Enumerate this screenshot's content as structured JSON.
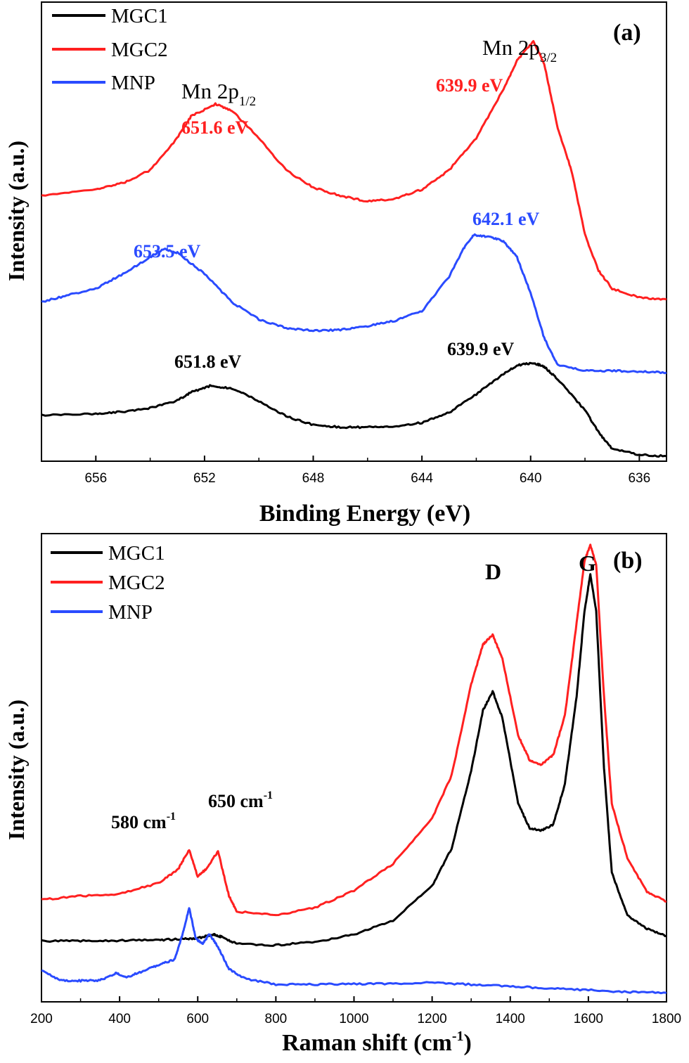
{
  "chart_data": [
    {
      "type": "line",
      "panel_label": "(a)",
      "xlabel": "Binding Energy (eV)",
      "ylabel": "Intensity (a.u.)",
      "xlim": [
        658,
        635
      ],
      "x_reversed": true,
      "ylim": [
        0,
        100
      ],
      "xticks": [
        "656",
        "652",
        "648",
        "644",
        "640",
        "636"
      ],
      "xtick_values": [
        656,
        652,
        648,
        644,
        640,
        636
      ],
      "grid": false,
      "legend_position": "top-left",
      "series": [
        {
          "name": "MGC1",
          "color": "#000000",
          "x": [
            658,
            656,
            655,
            654,
            653,
            652.5,
            651.8,
            651,
            650,
            649,
            648,
            647,
            646,
            645,
            644,
            643,
            642,
            641,
            640.5,
            639.9,
            639.5,
            639,
            638,
            637.5,
            637,
            636,
            635
          ],
          "y": [
            10.0,
            10.3,
            10.8,
            11.6,
            13.2,
            15.0,
            16.4,
            15.9,
            13.1,
            9.8,
            7.9,
            7.4,
            7.4,
            7.6,
            8.4,
            10.6,
            14.6,
            19.0,
            20.9,
            21.4,
            20.6,
            17.8,
            11.1,
            6.3,
            2.7,
            1.4,
            1.1
          ]
        },
        {
          "name": "MGC2",
          "color": "#ff2020",
          "x": [
            658,
            656,
            655,
            654,
            653,
            652.5,
            651.6,
            651,
            650,
            649,
            648,
            647,
            646,
            645,
            644,
            643,
            642,
            641,
            640.5,
            639.9,
            639.5,
            639,
            638.5,
            638,
            637.5,
            637,
            636,
            635
          ],
          "y": [
            57.8,
            59.2,
            60.6,
            63.4,
            70.4,
            75.1,
            77.8,
            76.4,
            70.4,
            63.4,
            59.6,
            57.8,
            56.6,
            57.1,
            59.2,
            63.4,
            70.4,
            81.0,
            87.3,
            91.5,
            86.6,
            72.4,
            63.4,
            49.3,
            41.5,
            37.6,
            35.7,
            35.2
          ]
        },
        {
          "name": "MNP",
          "color": "#2a4bff",
          "x": [
            658,
            657,
            656,
            655,
            654,
            653.5,
            653,
            652,
            651,
            650,
            649,
            648,
            647,
            646,
            645,
            644,
            643,
            642.5,
            642.1,
            641.5,
            641,
            640.5,
            640,
            639.5,
            639,
            638,
            637,
            636,
            635
          ],
          "y": [
            34.7,
            36.2,
            37.6,
            40.8,
            44.5,
            46.2,
            45.4,
            40.8,
            34.7,
            30.9,
            29.0,
            28.4,
            28.6,
            29.4,
            30.6,
            32.7,
            40.2,
            46.0,
            49.3,
            48.8,
            47.9,
            44.4,
            36.6,
            26.8,
            20.9,
            19.7,
            19.7,
            19.5,
            19.3
          ]
        }
      ],
      "annotations": {
        "mn_2p12_main": "Mn 2p",
        "mn_2p12_sub": "1/2",
        "mn_2p32_main": "Mn 2p",
        "mn_2p32_sub": "3/2",
        "mgc2_peak1": "651.6 eV",
        "mgc2_peak2": "639.9 eV",
        "mnp_peak1": "653.5 eV",
        "mnp_peak2": "642.1 eV",
        "mgc1_peak1": "651.8 eV",
        "mgc1_peak2": "639.9 eV"
      }
    },
    {
      "type": "line",
      "panel_label": "(b)",
      "xlabel_main": "Raman shift (cm",
      "xlabel_sup": "-1",
      "xlabel_close": ")",
      "ylabel": "Intensity (a.u.)",
      "xlim": [
        200,
        1800
      ],
      "ylim": [
        0,
        100
      ],
      "xticks": [
        "200",
        "400",
        "600",
        "800",
        "1000",
        "1200",
        "1400",
        "1600",
        "1800"
      ],
      "xtick_values": [
        200,
        400,
        600,
        800,
        1000,
        1200,
        1400,
        1600,
        1800
      ],
      "grid": false,
      "legend_position": "top-left",
      "series": [
        {
          "name": "MGC1",
          "color": "#000000",
          "x": [
            200,
            300,
            400,
            500,
            560,
            600,
            640,
            660,
            700,
            800,
            900,
            1000,
            1100,
            1200,
            1250,
            1300,
            1330,
            1355,
            1380,
            1420,
            1450,
            1480,
            1510,
            1540,
            1570,
            1590,
            1605,
            1620,
            1640,
            1660,
            1700,
            1750,
            1800
          ],
          "y": [
            13.0,
            13.0,
            13.1,
            13.2,
            13.4,
            13.6,
            14.4,
            13.9,
            12.4,
            12.1,
            12.8,
            14.4,
            17.4,
            24.8,
            32.8,
            49.3,
            62.2,
            66.3,
            60.6,
            42.4,
            37.0,
            36.6,
            37.8,
            46.6,
            65.3,
            83.4,
            91.3,
            83.4,
            50.0,
            27.6,
            18.5,
            15.6,
            14.1
          ]
        },
        {
          "name": "MGC2",
          "color": "#ff2020",
          "x": [
            200,
            300,
            400,
            500,
            550,
            578,
            600,
            620,
            652,
            680,
            700,
            800,
            900,
            1000,
            1100,
            1200,
            1250,
            1300,
            1330,
            1355,
            1380,
            1420,
            1450,
            1480,
            1510,
            1540,
            1570,
            1590,
            1605,
            1620,
            1640,
            1660,
            1700,
            1750,
            1800
          ],
          "y": [
            21.8,
            22.6,
            23.0,
            25.4,
            28.3,
            32.5,
            26.7,
            28.3,
            32.1,
            22.6,
            19.3,
            18.5,
            20.1,
            23.8,
            29.5,
            39.1,
            48.4,
            67.8,
            76.3,
            78.4,
            73.2,
            57.0,
            51.5,
            50.7,
            52.7,
            61.2,
            80.9,
            94.1,
            97.6,
            93.4,
            65.3,
            42.2,
            30.7,
            23.4,
            21.4
          ]
        },
        {
          "name": "MNP",
          "color": "#2a4bff",
          "x": [
            200,
            250,
            300,
            350,
            390,
            420,
            460,
            500,
            540,
            560,
            578,
            595,
            612,
            630,
            650,
            680,
            720,
            800,
            900,
            1000,
            1100,
            1200,
            1300,
            1400,
            1500,
            1600,
            1700,
            1800
          ],
          "y": [
            6.6,
            4.6,
            4.5,
            4.6,
            6.1,
            5.3,
            6.6,
            7.9,
            9.0,
            14.0,
            20.1,
            13.5,
            12.4,
            14.4,
            12.0,
            7.0,
            5.0,
            3.7,
            3.7,
            3.8,
            3.9,
            4.1,
            3.7,
            3.3,
            2.9,
            2.5,
            2.1,
            1.9
          ]
        }
      ],
      "annotations": {
        "peak_580_main": "580 cm",
        "peak_580_sup": "-1",
        "peak_650_main": "650 cm",
        "peak_650_sup": "-1",
        "d_band": "D",
        "g_band": "G"
      }
    }
  ]
}
